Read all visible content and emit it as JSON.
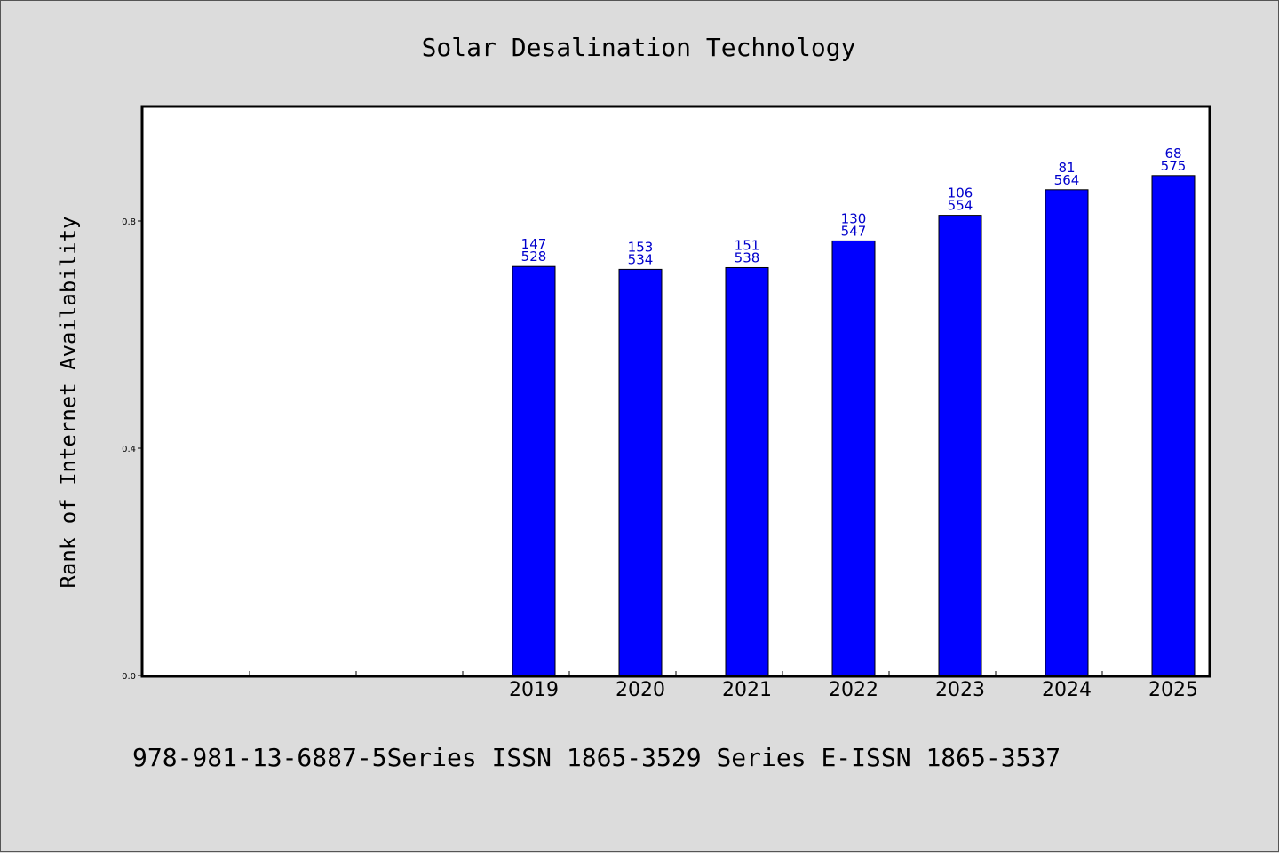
{
  "chart_data": {
    "type": "bar",
    "title": "Solar Desalination Technology",
    "xlabel": "",
    "ylabel": "Rank of Internet Availability",
    "ylim": [
      0,
      1.0
    ],
    "yticks": [
      "0.0",
      "0.4",
      "0.8"
    ],
    "categories": [
      "",
      "",
      "",
      "2019",
      "2020",
      "2021",
      "2022",
      "2023",
      "2024",
      "2025"
    ],
    "values": [
      null,
      null,
      null,
      0.72,
      0.715,
      0.718,
      0.765,
      0.81,
      0.855,
      0.88
    ],
    "labels_top": [
      "",
      "",
      "",
      "147",
      "153",
      "151",
      "130",
      "106",
      "81",
      "68"
    ],
    "labels_bottom": [
      "",
      "",
      "",
      "528",
      "534",
      "538",
      "547",
      "554",
      "564",
      "575"
    ],
    "bar_color": "#0000ff",
    "label_color": "#0000cc",
    "grid": false
  },
  "footer": {
    "text": "978-981-13-6887-5Series ISSN 1865-3529 Series E-ISSN 1865-3537"
  }
}
